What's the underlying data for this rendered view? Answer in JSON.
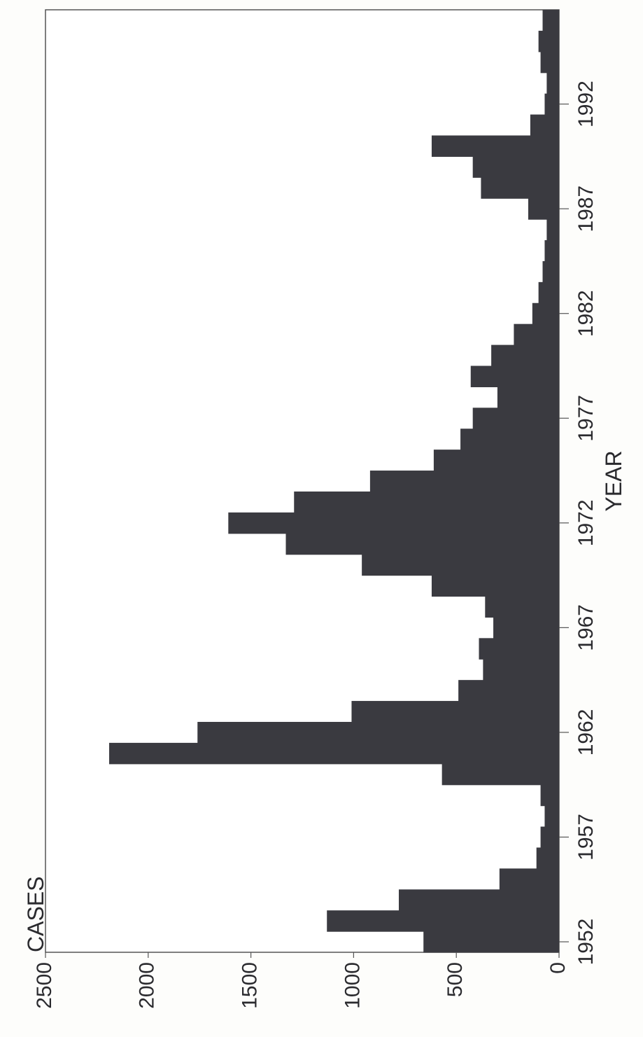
{
  "chart_data": {
    "type": "bar",
    "orientation": "rotated-90",
    "title": "",
    "xlabel": "YEAR",
    "ylabel": "CASES",
    "ylim": [
      0,
      2500
    ],
    "xlim": [
      1951.5,
      1996.5
    ],
    "grid": "off",
    "bar_color": "#3a3a40",
    "x_ticks": [
      1952,
      1957,
      1962,
      1967,
      1972,
      1977,
      1982,
      1987,
      1992
    ],
    "y_ticks": [
      0,
      500,
      1000,
      1500,
      2000,
      2500
    ],
    "categories": [
      1952,
      1953,
      1954,
      1955,
      1956,
      1957,
      1958,
      1959,
      1960,
      1961,
      1962,
      1963,
      1964,
      1965,
      1966,
      1967,
      1968,
      1969,
      1970,
      1971,
      1972,
      1973,
      1974,
      1975,
      1976,
      1977,
      1978,
      1979,
      1980,
      1981,
      1982,
      1983,
      1984,
      1985,
      1986,
      1987,
      1988,
      1989,
      1990,
      1991,
      1992,
      1993,
      1994,
      1995,
      1996
    ],
    "values": [
      660,
      1130,
      780,
      290,
      110,
      90,
      70,
      90,
      570,
      2190,
      1760,
      1010,
      490,
      370,
      390,
      320,
      360,
      620,
      960,
      1330,
      1610,
      1290,
      920,
      610,
      480,
      420,
      300,
      430,
      330,
      220,
      130,
      100,
      80,
      70,
      60,
      150,
      380,
      420,
      620,
      140,
      70,
      60,
      90,
      100,
      80
    ]
  }
}
